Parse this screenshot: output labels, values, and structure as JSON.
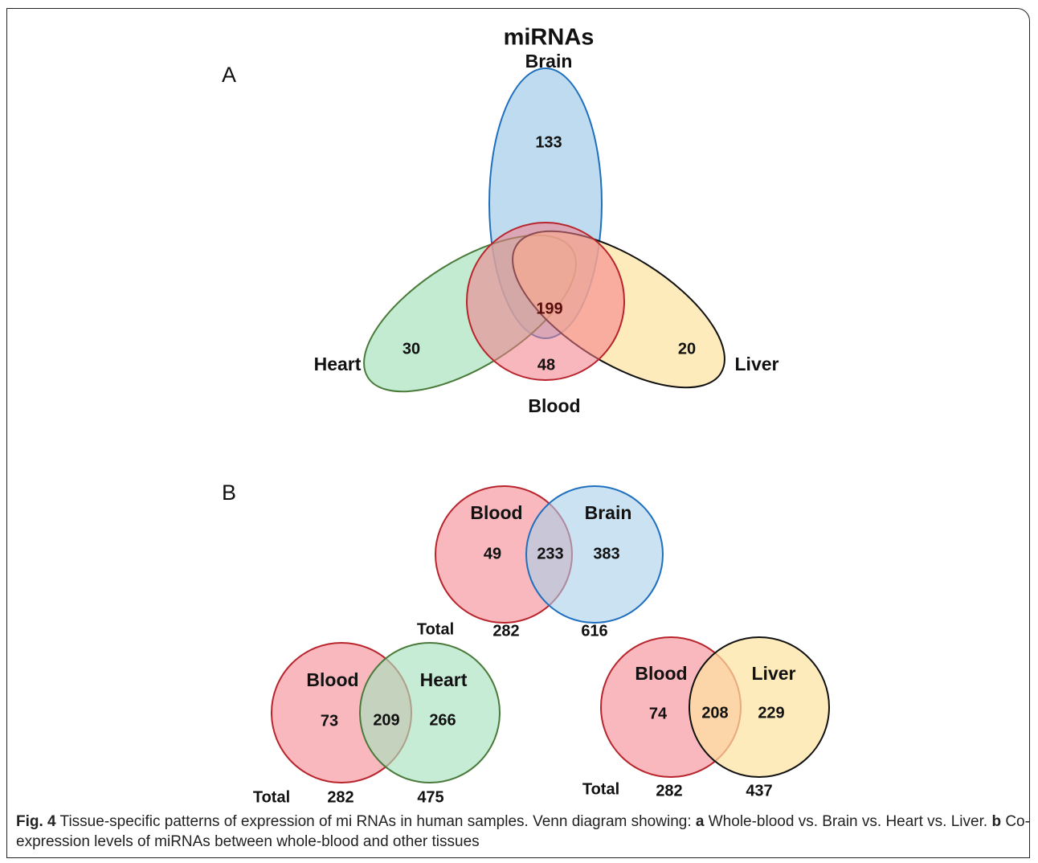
{
  "panel_a": {
    "label": "A",
    "title": "miRNAs",
    "sets": {
      "brain": "Brain",
      "heart": "Heart",
      "liver": "Liver",
      "blood": "Blood"
    },
    "regions": {
      "brain_only": "133",
      "all": "199",
      "heart_only": "30",
      "liver_only": "20",
      "blood_only": "48"
    }
  },
  "panel_b": {
    "label": "B",
    "venns": [
      {
        "left": "Blood",
        "right": "Brain",
        "left_only": "49",
        "shared": "233",
        "right_only": "383",
        "total_label": "Total",
        "left_total": "282",
        "right_total": "616"
      },
      {
        "left": "Blood",
        "right": "Heart",
        "left_only": "73",
        "shared": "209",
        "right_only": "266",
        "total_label": "Total",
        "left_total": "282",
        "right_total": "475"
      },
      {
        "left": "Blood",
        "right": "Liver",
        "left_only": "74",
        "shared": "208",
        "right_only": "229",
        "total_label": "Total",
        "left_total": "282",
        "right_total": "437"
      }
    ]
  },
  "caption": {
    "fig_label": "Fig. 4",
    "text1": " Tissue-specific patterns of expression of mi RNAs in human samples. Venn diagram showing: ",
    "a": "a",
    "text2": " Whole-blood vs. Brain vs. Heart vs. Liver. ",
    "b": "b",
    "text3": " Co-expression levels of miRNAs between whole-blood and other tissues"
  }
}
